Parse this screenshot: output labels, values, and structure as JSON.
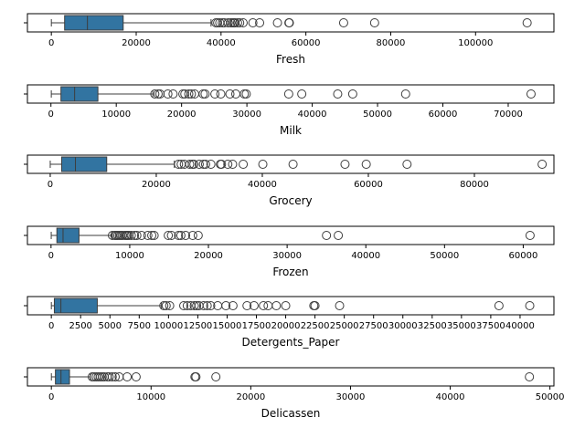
{
  "chart_data": [
    {
      "type": "box",
      "xlabel": "Fresh",
      "xlim": [
        -5640,
        118470
      ],
      "ticks": [
        0,
        20000,
        40000,
        60000,
        80000,
        100000
      ],
      "tick_labels": [
        "0",
        "20000",
        "40000",
        "60000",
        "80000",
        "100000"
      ],
      "box": {
        "whisker_low": 3,
        "q1": 3128,
        "median": 8504,
        "q3": 16934,
        "whisker_high": 37642
      },
      "outliers": [
        38800,
        39200,
        39700,
        40300,
        40800,
        41700,
        42300,
        42800,
        43100,
        43300,
        43900,
        44400,
        45200,
        47500,
        49100,
        53300,
        56000,
        56100,
        68900,
        76200,
        112151
      ]
    },
    {
      "type": "box",
      "xlabel": "Milk",
      "xlim": [
        -3600,
        77000
      ],
      "ticks": [
        0,
        10000,
        20000,
        30000,
        40000,
        50000,
        60000,
        70000
      ],
      "tick_labels": [
        "0",
        "10000",
        "20000",
        "30000",
        "40000",
        "50000",
        "60000",
        "70000"
      ],
      "box": {
        "whisker_low": 55,
        "q1": 1533,
        "median": 3627,
        "q3": 7190,
        "whisker_high": 15600
      },
      "outliers": [
        15900,
        16400,
        16700,
        17900,
        18700,
        20200,
        20500,
        21100,
        21500,
        22000,
        23300,
        23600,
        25100,
        26000,
        27400,
        28300,
        29600,
        29900,
        36400,
        38400,
        43900,
        46200,
        54300,
        73498
      ]
    },
    {
      "type": "box",
      "xlabel": "Grocery",
      "xlim": [
        -4300,
        95000
      ],
      "ticks": [
        0,
        20000,
        40000,
        60000,
        80000
      ],
      "tick_labels": [
        "0",
        "20000",
        "40000",
        "60000",
        "80000"
      ],
      "box": {
        "whisker_low": 3,
        "q1": 2153,
        "median": 4756,
        "q3": 10656,
        "whisker_high": 23400
      },
      "outliers": [
        24200,
        24700,
        25300,
        26300,
        26800,
        27100,
        28100,
        28900,
        29300,
        30300,
        32100,
        32300,
        33500,
        34400,
        36400,
        40100,
        45800,
        55600,
        59600,
        67300,
        92780
      ]
    },
    {
      "type": "box",
      "xlabel": "Frozen",
      "xlim": [
        -3000,
        63900
      ],
      "ticks": [
        0,
        10000,
        20000,
        30000,
        40000,
        50000,
        60000
      ],
      "tick_labels": [
        "0",
        "10000",
        "20000",
        "30000",
        "40000",
        "50000",
        "60000"
      ],
      "box": {
        "whisker_low": 25,
        "q1": 742,
        "median": 1526,
        "q3": 3554,
        "whisker_high": 7700
      },
      "outliers": [
        7800,
        8100,
        8300,
        8500,
        8700,
        8900,
        9100,
        9400,
        9600,
        9700,
        9900,
        10200,
        10600,
        10900,
        11500,
        12300,
        12800,
        13100,
        14900,
        15300,
        16200,
        16500,
        17100,
        18000,
        18700,
        35000,
        36500,
        60869
      ]
    },
    {
      "type": "box",
      "xlabel": "Detergents_Paper",
      "xlim": [
        -2040,
        42890
      ],
      "ticks": [
        0,
        2500,
        5000,
        7500,
        10000,
        12500,
        15000,
        17500,
        20000,
        22500,
        25000,
        27500,
        30000,
        32500,
        35000,
        37500,
        40000
      ],
      "tick_labels": [
        "0",
        "2500",
        "5000",
        "7500",
        "10000",
        "12500",
        "15000",
        "17500",
        "20000",
        "22500",
        "25000",
        "27500",
        "30000",
        "32500",
        "35000",
        "37500",
        "40000"
      ],
      "box": {
        "whisker_low": 3,
        "q1": 257,
        "median": 816,
        "q3": 3922,
        "whisker_high": 9400
      },
      "outliers": [
        9600,
        9800,
        10100,
        11300,
        11600,
        11900,
        12200,
        12400,
        12600,
        13000,
        13300,
        13600,
        14200,
        14900,
        15500,
        16700,
        17300,
        18100,
        18500,
        19200,
        20000,
        22400,
        22500,
        24600,
        38200,
        40827
      ]
    },
    {
      "type": "box",
      "xlabel": "Delicassen",
      "xlim": [
        -2400,
        50400
      ],
      "ticks": [
        0,
        10000,
        20000,
        30000,
        40000,
        50000
      ],
      "tick_labels": [
        "0",
        "10000",
        "20000",
        "30000",
        "40000",
        "50000"
      ],
      "box": {
        "whisker_low": 3,
        "q1": 408,
        "median": 966,
        "q3": 1820,
        "whisker_high": 3900
      },
      "outliers": [
        4100,
        4300,
        4500,
        4700,
        4900,
        5100,
        5300,
        5600,
        5800,
        6100,
        6400,
        6800,
        7600,
        8500,
        14400,
        14500,
        16500,
        47943
      ]
    }
  ],
  "colors": {
    "box_fill": "#3274a1",
    "line": "#3d3d3d",
    "outlier_edge": "#3d3d3d",
    "axes": "#000000"
  }
}
